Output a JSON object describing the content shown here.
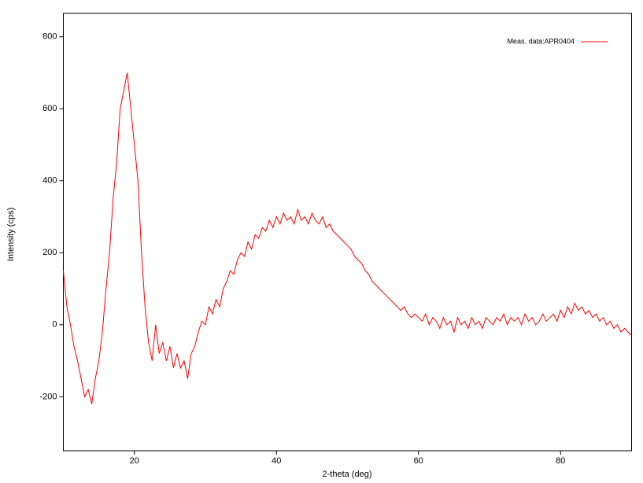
{
  "chart_data": {
    "type": "line",
    "xlabel": "2-theta (deg)",
    "ylabel": "Intensity (cps)",
    "xlim": [
      10,
      90
    ],
    "ylim": [
      -350,
      865
    ],
    "xticks": [
      20,
      40,
      60,
      80
    ],
    "yticks": [
      -200,
      0,
      200,
      400,
      600,
      800
    ],
    "legend": "top-right",
    "series": [
      {
        "name": "Meas. data:APR0404",
        "color": "#ff0000",
        "x": [
          10,
          10.5,
          11,
          11.5,
          12,
          12.5,
          13,
          13.5,
          14,
          14.5,
          15,
          15.5,
          16,
          16.5,
          17,
          17.5,
          18,
          18.5,
          19,
          19.5,
          20,
          20.5,
          21,
          21.5,
          22,
          22.5,
          23,
          23.5,
          24,
          24.5,
          25,
          25.5,
          26,
          26.5,
          27,
          27.5,
          28,
          28.5,
          29,
          29.5,
          30,
          30.5,
          31,
          31.5,
          32,
          32.5,
          33,
          33.5,
          34,
          34.5,
          35,
          35.5,
          36,
          36.5,
          37,
          37.5,
          38,
          38.5,
          39,
          39.5,
          40,
          40.5,
          41,
          41.5,
          42,
          42.5,
          43,
          43.5,
          44,
          44.5,
          45,
          45.5,
          46,
          46.5,
          47,
          47.5,
          48,
          48.5,
          49,
          49.5,
          50,
          50.5,
          51,
          51.5,
          52,
          52.5,
          53,
          53.5,
          54,
          54.5,
          55,
          55.5,
          56,
          56.5,
          57,
          57.5,
          58,
          58.5,
          59,
          59.5,
          60,
          60.5,
          61,
          61.5,
          62,
          62.5,
          63,
          63.5,
          64,
          64.5,
          65,
          65.5,
          66,
          66.5,
          67,
          67.5,
          68,
          68.5,
          69,
          69.5,
          70,
          70.5,
          71,
          71.5,
          72,
          72.5,
          73,
          73.5,
          74,
          74.5,
          75,
          75.5,
          76,
          76.5,
          77,
          77.5,
          78,
          78.5,
          79,
          79.5,
          80,
          80.5,
          81,
          81.5,
          82,
          82.5,
          83,
          83.5,
          84,
          84.5,
          85,
          85.5,
          86,
          86.5,
          87,
          87.5,
          88,
          88.5,
          89,
          89.5,
          90
        ],
        "values": [
          150,
          50,
          0,
          -60,
          -100,
          -150,
          -200,
          -180,
          -220,
          -150,
          -100,
          -20,
          100,
          200,
          350,
          450,
          600,
          650,
          700,
          600,
          500,
          400,
          200,
          50,
          -50,
          -100,
          0,
          -80,
          -50,
          -100,
          -60,
          -120,
          -80,
          -120,
          -100,
          -150,
          -80,
          -60,
          -20,
          10,
          0,
          50,
          30,
          70,
          50,
          100,
          120,
          150,
          140,
          180,
          200,
          190,
          230,
          210,
          250,
          240,
          270,
          260,
          290,
          270,
          300,
          280,
          310,
          290,
          300,
          280,
          320,
          290,
          300,
          280,
          310,
          290,
          280,
          300,
          270,
          280,
          260,
          250,
          240,
          230,
          220,
          210,
          190,
          180,
          170,
          150,
          140,
          120,
          110,
          100,
          90,
          80,
          70,
          60,
          50,
          40,
          50,
          30,
          20,
          30,
          20,
          10,
          30,
          0,
          20,
          10,
          -10,
          20,
          0,
          10,
          -20,
          20,
          0,
          10,
          -10,
          20,
          0,
          10,
          -10,
          20,
          10,
          0,
          20,
          10,
          30,
          0,
          20,
          10,
          20,
          0,
          30,
          10,
          20,
          0,
          10,
          30,
          10,
          20,
          30,
          10,
          40,
          20,
          50,
          30,
          60,
          40,
          50,
          30,
          40,
          20,
          30,
          10,
          20,
          0,
          10,
          -10,
          0,
          -20,
          -10,
          -20,
          -30
        ]
      }
    ]
  }
}
